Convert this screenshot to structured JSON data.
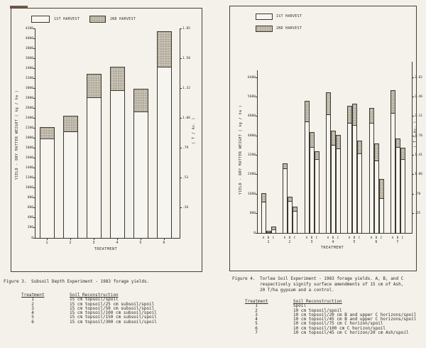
{
  "page": {
    "background": "#f3f1ea",
    "ink": "#2d2a25",
    "second_harvest_fill": "#ddd8cf"
  },
  "figure3": {
    "legend": {
      "first": "1ST HARVEST",
      "second": "2ND HARVEST"
    },
    "caption_label": "Figure 3.",
    "caption_text": "Subsoil Depth Experiment - 1983 forage yields.",
    "table": {
      "header_treatment": "Treatment",
      "header_soil": "Soil Reconstruction",
      "rows": [
        {
          "treatment": "1",
          "soil": "15 cm topsoil/spoil"
        },
        {
          "treatment": "2",
          "soil": "15 cm topsoil/25 cm subsoil/spoil"
        },
        {
          "treatment": "3",
          "soil": "15 cm topsoil/50 cm subsoil/spoil"
        },
        {
          "treatment": "4",
          "soil": "15 cm topsoil/100 cm subsoil/spoil"
        },
        {
          "treatment": "5",
          "soil": "15 cm topsoil/150 cm subsoil/spoil"
        },
        {
          "treatment": "6",
          "soil": "15 cm topsoil/300 cm subsoil/spoil"
        }
      ]
    }
  },
  "figure4": {
    "legend": {
      "first": "1ST HARVEST",
      "second": "2ND HARVEST"
    },
    "caption_label": "Figure 4.",
    "caption_lines": [
      "Torlea Soil Experiment - 1983 forage yields.  A, B, and C",
      "respectively signify surface amendments of 15 cm of Ash,",
      "20 T/ha gypsum and a control."
    ],
    "table": {
      "header_treatment": "Treatment",
      "header_soil": "Soil Reconstruction",
      "rows": [
        {
          "treatment": "1",
          "soil": "Spoil"
        },
        {
          "treatment": "2",
          "soil": "10 cm topsoil/spoil"
        },
        {
          "treatment": "3",
          "soil": "10 cm topsoil/20 cm B and upper C horizons/spoil"
        },
        {
          "treatment": "4",
          "soil": "10 cm topsoil/45 cm B and upper C horizons/spoil"
        },
        {
          "treatment": "5",
          "soil": "10 cm topsoil/75 cm C horizon/spoil"
        },
        {
          "treatment": "6",
          "soil": "10 cm topsoil/100 cm C horizon/spoil"
        },
        {
          "treatment": "7",
          "soil": "10 cm topsoil/45 cm C horizon/20 cm Ash/spoil"
        }
      ]
    }
  },
  "chart_data": [
    {
      "type": "bar",
      "stacked": true,
      "title": "Figure 3. Subsoil Depth Experiment - 1983 forage yields.",
      "categories": [
        "1",
        "2",
        "3",
        "4",
        "5",
        "6"
      ],
      "series": [
        {
          "name": "1ST HARVEST",
          "values": [
            2000,
            2150,
            2830,
            2980,
            2550,
            3450
          ]
        },
        {
          "name": "2ND HARVEST",
          "values": [
            220,
            300,
            460,
            450,
            440,
            700
          ]
        }
      ],
      "totals": [
        2220,
        2450,
        3290,
        3430,
        2990,
        4150
      ],
      "xlabel": "TREATMENT",
      "ylabel": "YIELD - DRY MATTER WEIGHT ( kg / ha )",
      "y2label": "( T / Ac. )",
      "ylim": [
        0,
        4200
      ],
      "ytick_step": 200,
      "y2ticks": [
        ".26",
        ".53",
        ".79",
        "1.06",
        "1.32",
        "1.58",
        "1.85"
      ],
      "grid": false,
      "legend_position": "top-horizontal"
    },
    {
      "type": "bar",
      "stacked": true,
      "grouped": true,
      "title": "Figure 4. Torlea Soil Experiment - 1983 forage yields. A, B, and C signify surface amendments of 15 cm of Ash, 20 T/ha gypsum and a control.",
      "group_labels": [
        "1",
        "2",
        "3",
        "4",
        "5",
        "6",
        "7"
      ],
      "sub_labels": [
        "A",
        "B",
        "C"
      ],
      "series": [
        {
          "name": "1ST HARVEST",
          "groups": [
            [
              1300,
              30,
              150
            ],
            [
              2700,
              1350,
              940
            ],
            [
              4600,
              3550,
              3070
            ],
            [
              4900,
              3650,
              3500
            ],
            [
              4550,
              4470,
              3300
            ],
            [
              4560,
              3010,
              1460
            ],
            [
              4970,
              3550,
              3070
            ]
          ]
        },
        {
          "name": "2ND HARVEST",
          "groups": [
            [
              350,
              60,
              110
            ],
            [
              170,
              150,
              150
            ],
            [
              850,
              600,
              290
            ],
            [
              900,
              550,
              530
            ],
            [
              680,
              850,
              500
            ],
            [
              580,
              670,
              760
            ],
            [
              900,
              350,
              430
            ]
          ]
        }
      ],
      "xlabel": "TREATMENT",
      "ylabel": "YIELD - DRY MATTER WEIGHT ( kg / ha )",
      "y2label": "( T / Ac. )",
      "ylim": [
        0,
        6400
      ],
      "ytick_step": 800,
      "y2ticks": [
        ".35",
        ".70",
        "1.06",
        "1.41",
        "1.76",
        "2.11",
        "2.46",
        "2.82"
      ],
      "grid": false,
      "legend_position": "top-left-stacked"
    }
  ]
}
